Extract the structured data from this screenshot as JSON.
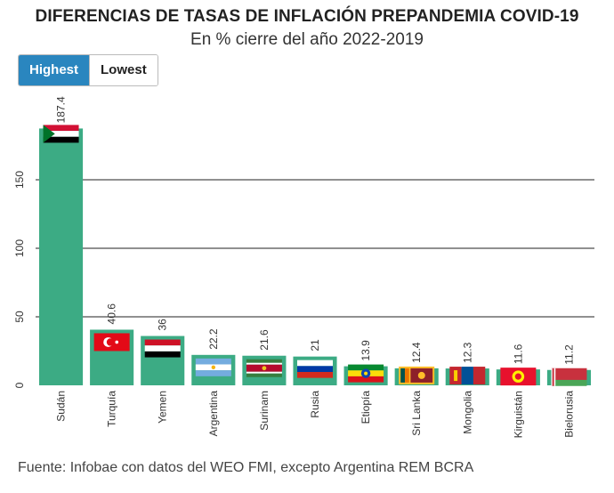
{
  "header": {
    "title": "DIFERENCIAS DE TASAS DE INFLACIÓN PREPANDEMIA COVID-19",
    "subtitle": "En % cierre del año 2022-2019"
  },
  "toggle": {
    "highest_label": "Highest",
    "lowest_label": "Lowest"
  },
  "footer": {
    "source": "Fuente: Infobae con datos del WEO FMI, excepto Argentina REM BCRA"
  },
  "colors": {
    "bar": "#3cab84",
    "grid": "#222222",
    "active_button": "#2a86bf"
  },
  "chart_data": {
    "type": "bar",
    "categories": [
      "Sudán",
      "Turquía",
      "Yemen",
      "Argentina",
      "Surinam",
      "Rusia",
      "Etiopía",
      "Sri Lanka",
      "Mongolia",
      "Kirguistán",
      "Bielorusia"
    ],
    "values": [
      187.4,
      40.6,
      36,
      22.2,
      21.6,
      21,
      13.9,
      12.4,
      12.3,
      11.6,
      11.2
    ],
    "value_labels": [
      "187.4",
      "40.6",
      "36",
      "22.2",
      "21.6",
      "21",
      "13.9",
      "12.4",
      "12.3",
      "11.6",
      "11.2"
    ],
    "flags": [
      "sudan-flag",
      "turkey-flag",
      "yemen-flag",
      "argentina-flag",
      "suriname-flag",
      "russia-flag",
      "ethiopia-flag",
      "sri-lanka-flag",
      "mongolia-flag",
      "kyrgyzstan-flag",
      "belarus-flag"
    ],
    "ylim": [
      0,
      190
    ],
    "yticks": [
      0,
      50,
      100,
      150
    ],
    "grid": true
  }
}
